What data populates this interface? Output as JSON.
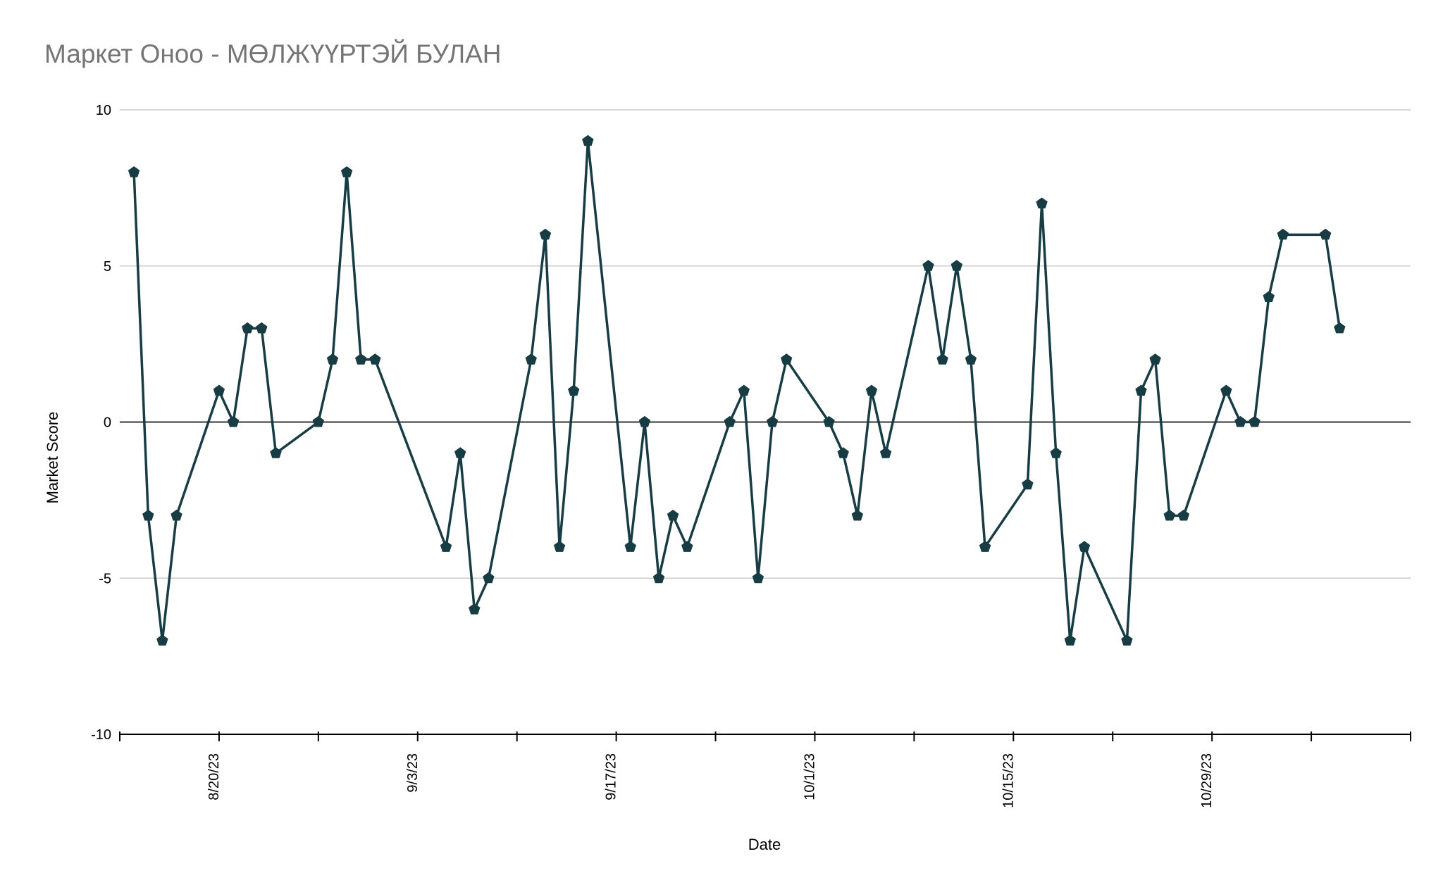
{
  "chart_data": {
    "type": "line",
    "title": "Маркет Оноо - МӨЛЖҮҮРТЭЙ БУЛАН",
    "xlabel": "Date",
    "ylabel": "Market Score",
    "ylim": [
      -10,
      10
    ],
    "yticks": [
      "10",
      "5",
      "0",
      "-5",
      "-10"
    ],
    "xlim": [
      "2023-08-13",
      "2023-11-12"
    ],
    "xtick_labels": [
      "8/20/23",
      "9/3/23",
      "9/17/23",
      "10/1/23",
      "10/15/23",
      "10/29/23"
    ],
    "grid": true,
    "legend": "none",
    "colors": {
      "line": "#173c43",
      "grid": "#cccccc",
      "zero_line": "#333333",
      "title": "#757575"
    },
    "series": [
      {
        "points": [
          [
            "2023-08-14",
            8
          ],
          [
            "2023-08-15",
            -3
          ],
          [
            "2023-08-16",
            -7
          ],
          [
            "2023-08-17",
            -3
          ],
          [
            "2023-08-20",
            1
          ],
          [
            "2023-08-21",
            0
          ],
          [
            "2023-08-22",
            3
          ],
          [
            "2023-08-23",
            3
          ],
          [
            "2023-08-24",
            -1
          ],
          [
            "2023-08-27",
            0
          ],
          [
            "2023-08-28",
            2
          ],
          [
            "2023-08-29",
            8
          ],
          [
            "2023-08-30",
            2
          ],
          [
            "2023-08-31",
            2
          ],
          [
            "2023-09-05",
            -4
          ],
          [
            "2023-09-06",
            -1
          ],
          [
            "2023-09-07",
            -6
          ],
          [
            "2023-09-08",
            -5
          ],
          [
            "2023-09-11",
            2
          ],
          [
            "2023-09-12",
            6
          ],
          [
            "2023-09-13",
            -4
          ],
          [
            "2023-09-14",
            1
          ],
          [
            "2023-09-15",
            9
          ],
          [
            "2023-09-18",
            -4
          ],
          [
            "2023-09-19",
            0
          ],
          [
            "2023-09-20",
            -5
          ],
          [
            "2023-09-21",
            -3
          ],
          [
            "2023-09-22",
            -4
          ],
          [
            "2023-09-25",
            0
          ],
          [
            "2023-09-26",
            1
          ],
          [
            "2023-09-27",
            -5
          ],
          [
            "2023-09-28",
            0
          ],
          [
            "2023-09-29",
            2
          ],
          [
            "2023-10-02",
            0
          ],
          [
            "2023-10-03",
            -1
          ],
          [
            "2023-10-04",
            -3
          ],
          [
            "2023-10-05",
            1
          ],
          [
            "2023-10-06",
            -1
          ],
          [
            "2023-10-09",
            5
          ],
          [
            "2023-10-10",
            2
          ],
          [
            "2023-10-11",
            5
          ],
          [
            "2023-10-12",
            2
          ],
          [
            "2023-10-13",
            -4
          ],
          [
            "2023-10-16",
            -2
          ],
          [
            "2023-10-17",
            7
          ],
          [
            "2023-10-18",
            -1
          ],
          [
            "2023-10-19",
            -7
          ],
          [
            "2023-10-20",
            -4
          ],
          [
            "2023-10-23",
            -7
          ],
          [
            "2023-10-24",
            1
          ],
          [
            "2023-10-25",
            2
          ],
          [
            "2023-10-26",
            -3
          ],
          [
            "2023-10-27",
            -3
          ],
          [
            "2023-10-30",
            1
          ],
          [
            "2023-10-31",
            0
          ],
          [
            "2023-11-01",
            0
          ],
          [
            "2023-11-02",
            4
          ],
          [
            "2023-11-03",
            6
          ],
          [
            "2023-11-06",
            6
          ],
          [
            "2023-11-07",
            3
          ]
        ]
      }
    ]
  }
}
